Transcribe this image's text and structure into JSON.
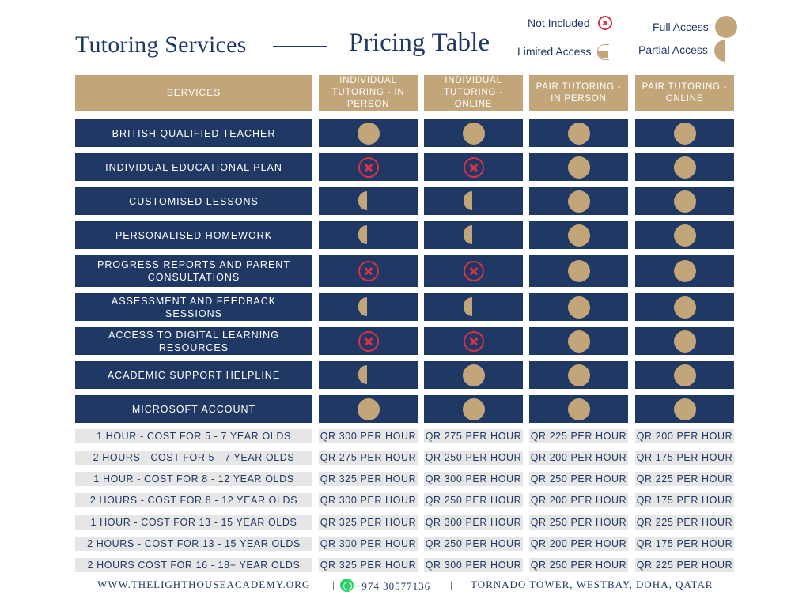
{
  "header": {
    "title_left": "Tutoring Services",
    "title_right": "Pricing Table"
  },
  "legend": {
    "not_included": "Not Included",
    "limited_access": "Limited Access",
    "full_access": "Full Access",
    "partial_access": "Partial Access"
  },
  "accent_colors": {
    "navy": "#1f3864",
    "gold": "#c2a679",
    "red": "#d9314a",
    "price_bg": "#e6e6e6"
  },
  "table": {
    "services_header": "SERVICES",
    "columns": [
      "INDIVIDUAL TUTORING - IN PERSON",
      "INDIVIDUAL TUTORING - ONLINE",
      "PAIR TUTORING - IN PERSON",
      "PAIR TUTORING - ONLINE"
    ],
    "services": [
      {
        "name": "BRITISH QUALIFIED TEACHER",
        "access": [
          "full",
          "full",
          "full",
          "full"
        ]
      },
      {
        "name": "INDIVIDUAL EDUCATIONAL PLAN",
        "access": [
          "none",
          "none",
          "full",
          "full"
        ]
      },
      {
        "name": "CUSTOMISED LESSONS",
        "access": [
          "partial",
          "partial",
          "full",
          "full"
        ]
      },
      {
        "name": "PERSONALISED HOMEWORK",
        "access": [
          "partial",
          "partial",
          "full",
          "full"
        ]
      },
      {
        "name": "PROGRESS REPORTS AND PARENT CONSULTATIONS",
        "access": [
          "none",
          "none",
          "full",
          "full"
        ]
      },
      {
        "name": "ASSESSMENT AND FEEDBACK SESSIONS",
        "access": [
          "partial",
          "partial",
          "full",
          "full"
        ]
      },
      {
        "name": "ACCESS TO DIGITAL LEARNING RESOURCES",
        "access": [
          "none",
          "none",
          "full",
          "full"
        ]
      },
      {
        "name": "ACADEMIC SUPPORT HELPLINE",
        "access": [
          "partial",
          "full",
          "full",
          "full"
        ]
      },
      {
        "name": "MICROSOFT ACCOUNT",
        "access": [
          "full",
          "full",
          "full",
          "full"
        ]
      }
    ],
    "prices": [
      {
        "label": "1 HOUR - COST FOR 5 - 7 YEAR OLDS",
        "values": [
          "QR 300 PER HOUR",
          "QR 275 PER HOUR",
          "QR 225 PER HOUR",
          "QR 200 PER HOUR"
        ]
      },
      {
        "label": "2 HOURS - COST FOR 5 - 7 YEAR OLDS",
        "values": [
          "QR 275 PER HOUR",
          "QR 250 PER HOUR",
          "QR 200 PER HOUR",
          "QR 175 PER HOUR"
        ]
      },
      {
        "label": "1 HOUR - COST FOR 8 - 12 YEAR OLDS",
        "values": [
          "QR 325 PER HOUR",
          "QR 300 PER HOUR",
          "QR 250 PER HOUR",
          "QR 225 PER HOUR"
        ]
      },
      {
        "label": "2 HOURS - COST FOR 8 - 12 YEAR OLDS",
        "values": [
          "QR 300 PER HOUR",
          "QR 250 PER HOUR",
          "QR 200 PER HOUR",
          "QR 175 PER HOUR"
        ]
      },
      {
        "label": "1 HOUR - COST FOR 13 - 15 YEAR OLDS",
        "values": [
          "QR 325 PER HOUR",
          "QR 300 PER HOUR",
          "QR 250 PER HOUR",
          "QR 225 PER HOUR"
        ]
      },
      {
        "label": "2 HOURS - COST FOR 13 - 15 YEAR OLDS",
        "values": [
          "QR 300 PER HOUR",
          "QR 250 PER HOUR",
          "QR 200 PER HOUR",
          "QR 175 PER HOUR"
        ]
      },
      {
        "label": "2 HOURS COST FOR 16 - 18+ YEAR OLDS",
        "values": [
          "QR 325 PER HOUR",
          "QR 300 PER HOUR",
          "QR 250 PER HOUR",
          "QR 225 PER HOUR"
        ]
      }
    ]
  },
  "footer": {
    "website": "WWW.THELIGHTHOUSEACADEMY.ORG",
    "separator": "|",
    "phone": "+974 30577136",
    "address": "TORNADO TOWER, WESTBAY, DOHA, QATAR",
    "whatsapp_icon": "whatsapp-icon"
  }
}
